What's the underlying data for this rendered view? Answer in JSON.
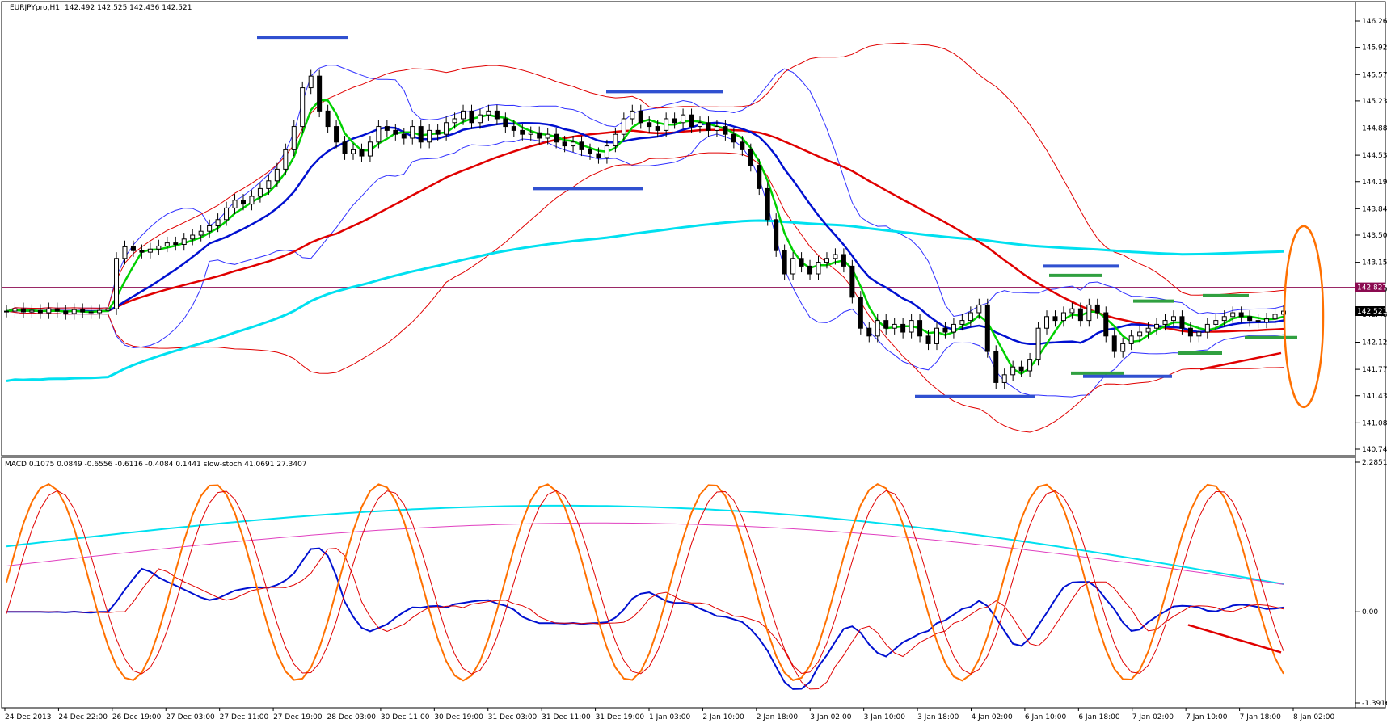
{
  "chart_data": [
    {
      "type": "candlestick",
      "symbol_header": "EURJPYpro,H1",
      "ohlc_header": "142.492 142.525 142.436 142.521",
      "y_ticks": [
        "146.260",
        "145.920",
        "145.570",
        "145.230",
        "144.880",
        "144.530",
        "144.190",
        "143.840",
        "143.500",
        "143.150",
        "142.800",
        "142.480",
        "142.120",
        "141.770",
        "141.430",
        "141.080",
        "140.740"
      ],
      "ylim": [
        140.74,
        146.26
      ],
      "current_price": "142.521",
      "marked_level": "142.827",
      "x_labels": [
        "24 Dec 2013",
        "24 Dec 22:00",
        "26 Dec 19:00",
        "27 Dec 03:00",
        "27 Dec 11:00",
        "27 Dec 19:00",
        "28 Dec 03:00",
        "30 Dec 11:00",
        "30 Dec 19:00",
        "31 Dec 03:00",
        "31 Dec 11:00",
        "31 Dec 19:00",
        "1 Jan 03:00",
        "2 Jan 10:00",
        "2 Jan 18:00",
        "3 Jan 02:00",
        "3 Jan 10:00",
        "3 Jan 18:00",
        "4 Jan 02:00",
        "6 Jan 10:00",
        "6 Jan 18:00",
        "7 Jan 02:00",
        "7 Jan 10:00",
        "7 Jan 18:00",
        "8 Jan 02:00"
      ],
      "closes": [
        142.52,
        142.55,
        142.51,
        142.53,
        142.5,
        142.55,
        142.52,
        142.49,
        142.54,
        142.51,
        142.5,
        142.53,
        142.55,
        143.2,
        143.35,
        143.3,
        143.28,
        143.32,
        143.36,
        143.4,
        143.38,
        143.45,
        143.5,
        143.55,
        143.62,
        143.7,
        143.85,
        143.95,
        143.9,
        144.0,
        144.1,
        144.2,
        144.35,
        144.6,
        144.9,
        145.4,
        145.55,
        145.1,
        144.9,
        144.7,
        144.55,
        144.6,
        144.52,
        144.7,
        144.9,
        144.85,
        144.8,
        144.75,
        144.9,
        144.7,
        144.85,
        144.8,
        144.95,
        145.0,
        145.1,
        144.95,
        145.05,
        145.1,
        145.0,
        144.9,
        144.85,
        144.8,
        144.82,
        144.75,
        144.8,
        144.7,
        144.65,
        144.7,
        144.6,
        144.55,
        144.5,
        144.65,
        144.8,
        145.0,
        145.1,
        144.95,
        144.9,
        144.85,
        145.0,
        144.95,
        145.05,
        144.9,
        144.95,
        144.85,
        144.9,
        144.8,
        144.7,
        144.6,
        144.4,
        144.1,
        143.7,
        143.3,
        143.0,
        143.2,
        143.1,
        143.0,
        143.15,
        143.2,
        143.25,
        143.1,
        142.7,
        142.3,
        142.2,
        142.4,
        142.3,
        142.35,
        142.25,
        142.4,
        142.2,
        142.1,
        142.3,
        142.25,
        142.35,
        142.4,
        142.5,
        142.6,
        142.0,
        141.6,
        141.7,
        141.8,
        141.75,
        141.9,
        142.3,
        142.45,
        142.4,
        142.5,
        142.55,
        142.4,
        142.6,
        142.5,
        142.2,
        142.0,
        142.1,
        142.2,
        142.25,
        142.3,
        142.35,
        142.4,
        142.45,
        142.3,
        142.2,
        142.25,
        142.35,
        142.4,
        142.45,
        142.5,
        142.45,
        142.4,
        142.38,
        142.42,
        142.48,
        142.52
      ],
      "upper_zone_levels": [
        "blue 146.05",
        "blue 145.35",
        "blue 144.10",
        "blue 143.10",
        "green 142.98",
        "green 142.65",
        "green 142.72",
        "green 142.18",
        "green 141.98",
        "green 141.72",
        "blue 141.68",
        "blue 141.42"
      ]
    },
    {
      "type": "line",
      "header": "MACD 0.1075 0.0849 -0.6556 -0.6116 -0.4084 0.1441  slow-stoch 41.0691 27.3407",
      "y_ticks": [
        "2.2851",
        "0.00",
        "-1.3916"
      ],
      "ylim": [
        -1.3916,
        2.2851
      ]
    }
  ]
}
